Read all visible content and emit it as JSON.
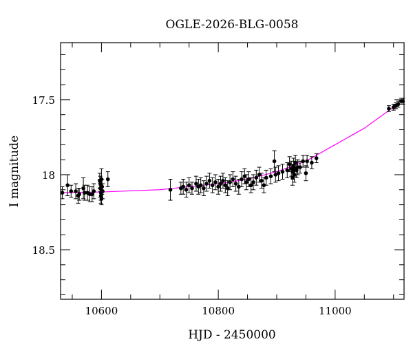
{
  "chart_data": {
    "type": "scatter",
    "title": "OGLE-2026-BLG-0058",
    "xlabel": "HJD - 2450000",
    "ylabel": "I magnitude",
    "xlim": [
      10530,
      11118
    ],
    "ylim": [
      18.83,
      17.12
    ],
    "y_inverted": true,
    "grid": false,
    "x_ticks": [
      10600,
      10800,
      11000
    ],
    "x_tick_labels": [
      "10600",
      "10800",
      "11000"
    ],
    "x_minor_step": 50,
    "y_ticks": [
      17.5,
      18,
      18.5
    ],
    "y_tick_labels": [
      "17.5",
      "18",
      "18.5"
    ],
    "y_minor_step": 0.1,
    "colors": {
      "points": "#000000",
      "model": "#ff00ff"
    },
    "points": [
      [
        10533,
        18.12,
        0.04
      ],
      [
        10542,
        18.07,
        0.07
      ],
      [
        10548,
        18.11,
        0.04
      ],
      [
        10556,
        18.11,
        0.05
      ],
      [
        10560,
        18.14,
        0.05
      ],
      [
        10562,
        18.13,
        0.04
      ],
      [
        10569,
        18.09,
        0.07
      ],
      [
        10571,
        18.12,
        0.05
      ],
      [
        10576,
        18.12,
        0.05
      ],
      [
        10580,
        18.13,
        0.05
      ],
      [
        10584,
        18.13,
        0.05
      ],
      [
        10587,
        18.11,
        0.05
      ],
      [
        10597,
        18.04,
        0.05
      ],
      [
        10598,
        18.06,
        0.05
      ],
      [
        10598,
        18.09,
        0.06
      ],
      [
        10599,
        18.12,
        0.05
      ],
      [
        10599,
        18.14,
        0.05
      ],
      [
        10600,
        18.16,
        0.04
      ],
      [
        10600,
        18.03,
        0.07
      ],
      [
        10601,
        18.08,
        0.05
      ],
      [
        10602,
        18.11,
        0.05
      ],
      [
        10611,
        18.03,
        0.05
      ],
      [
        10718,
        18.1,
        0.07
      ],
      [
        10736,
        18.09,
        0.04
      ],
      [
        10740,
        18.08,
        0.05
      ],
      [
        10745,
        18.1,
        0.05
      ],
      [
        10750,
        18.07,
        0.05
      ],
      [
        10755,
        18.09,
        0.04
      ],
      [
        10762,
        18.06,
        0.05
      ],
      [
        10766,
        18.08,
        0.05
      ],
      [
        10770,
        18.07,
        0.05
      ],
      [
        10775,
        18.09,
        0.05
      ],
      [
        10780,
        18.06,
        0.05
      ],
      [
        10785,
        18.04,
        0.05
      ],
      [
        10790,
        18.07,
        0.05
      ],
      [
        10795,
        18.05,
        0.05
      ],
      [
        10800,
        18.08,
        0.05
      ],
      [
        10804,
        18.06,
        0.05
      ],
      [
        10808,
        18.04,
        0.05
      ],
      [
        10812,
        18.07,
        0.05
      ],
      [
        10816,
        18.09,
        0.05
      ],
      [
        10820,
        18.05,
        0.05
      ],
      [
        10825,
        18.03,
        0.05
      ],
      [
        10830,
        18.06,
        0.05
      ],
      [
        10835,
        18.08,
        0.05
      ],
      [
        10840,
        18.03,
        0.05
      ],
      [
        10845,
        18.01,
        0.05
      ],
      [
        10848,
        18.05,
        0.05
      ],
      [
        10852,
        18.03,
        0.05
      ],
      [
        10856,
        18.07,
        0.05
      ],
      [
        10860,
        18.05,
        0.05
      ],
      [
        10865,
        18.02,
        0.05
      ],
      [
        10870,
        18.0,
        0.05
      ],
      [
        10874,
        18.04,
        0.05
      ],
      [
        10878,
        18.07,
        0.05
      ],
      [
        10882,
        18.02,
        0.05
      ],
      [
        10890,
        18.01,
        0.05
      ],
      [
        10896,
        17.91,
        0.07
      ],
      [
        10898,
        18.0,
        0.05
      ],
      [
        10903,
        17.99,
        0.05
      ],
      [
        10910,
        17.98,
        0.05
      ],
      [
        10918,
        17.97,
        0.05
      ],
      [
        10922,
        17.93,
        0.05
      ],
      [
        10925,
        17.96,
        0.05
      ],
      [
        10927,
        18.02,
        0.05
      ],
      [
        10928,
        17.98,
        0.05
      ],
      [
        10929,
        17.94,
        0.05
      ],
      [
        10930,
        18.0,
        0.05
      ],
      [
        10931,
        17.96,
        0.05
      ],
      [
        10932,
        17.92,
        0.05
      ],
      [
        10934,
        17.97,
        0.05
      ],
      [
        10936,
        17.95,
        0.05
      ],
      [
        10940,
        17.95,
        0.04
      ],
      [
        10945,
        17.91,
        0.04
      ],
      [
        10950,
        17.99,
        0.05
      ],
      [
        10952,
        17.91,
        0.04
      ],
      [
        10960,
        17.92,
        0.04
      ],
      [
        10968,
        17.89,
        0.03
      ],
      [
        11092,
        17.56,
        0.02
      ],
      [
        11100,
        17.55,
        0.02
      ],
      [
        11104,
        17.54,
        0.02
      ],
      [
        11108,
        17.53,
        0.02
      ],
      [
        11113,
        17.51,
        0.02
      ],
      [
        11116,
        17.51,
        0.02
      ]
    ],
    "model": {
      "x": [
        10530,
        10600,
        10700,
        10800,
        10850,
        10900,
        10950,
        11000,
        11050,
        11100,
        11118
      ],
      "y": [
        18.12,
        18.115,
        18.1,
        18.06,
        18.03,
        17.98,
        17.91,
        17.8,
        17.69,
        17.55,
        17.49
      ]
    }
  }
}
